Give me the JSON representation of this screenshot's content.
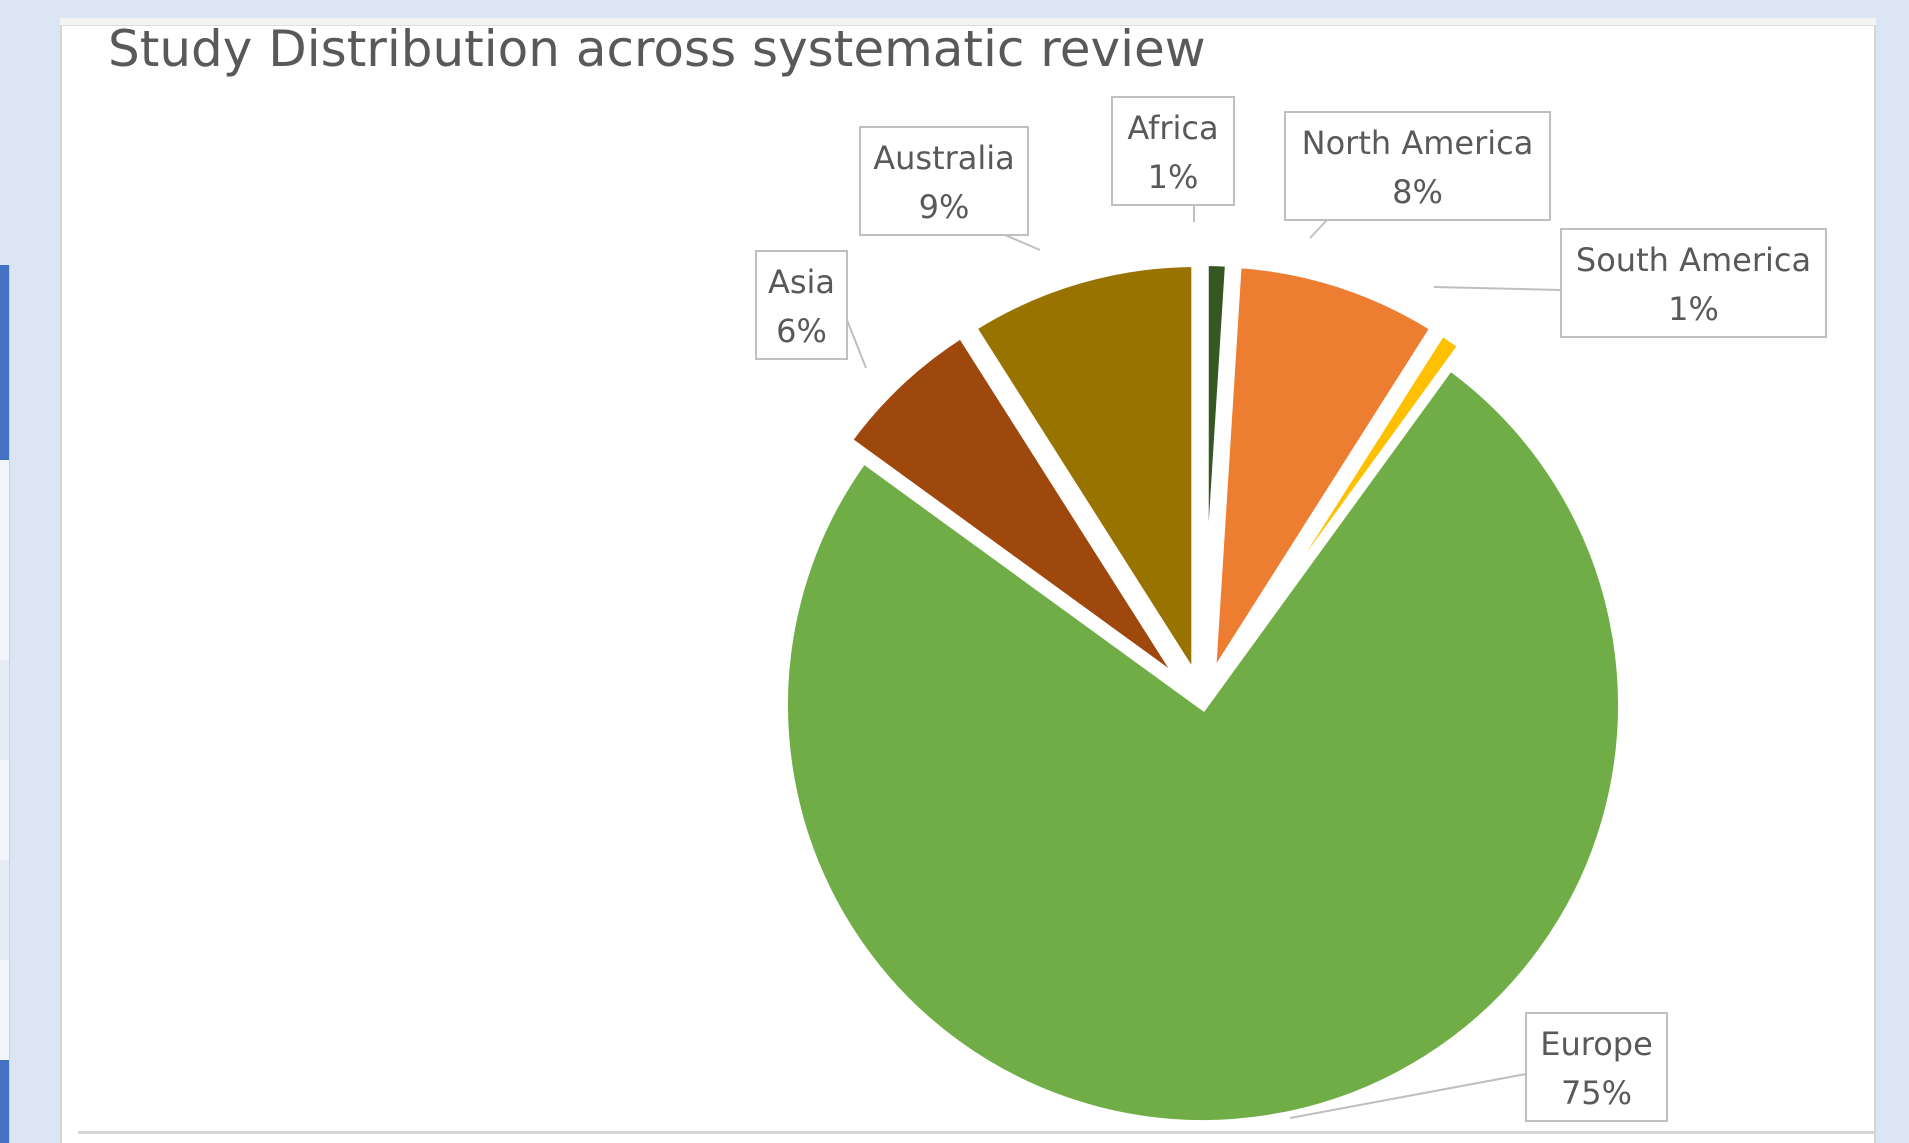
{
  "chart_data": {
    "type": "pie",
    "title": "Study Distribution across systematic review",
    "categories": [
      "Africa",
      "North America",
      "South America",
      "Europe",
      "Asia",
      "Australia"
    ],
    "values": [
      1,
      8,
      1,
      75,
      6,
      9
    ],
    "data_labels": [
      "1%",
      "8%",
      "1%",
      "75%",
      "6%",
      "9%"
    ],
    "colors": [
      "#375623",
      "#ed7d31",
      "#ffc000",
      "#70ad47",
      "#9e480e",
      "#997300"
    ],
    "exploded": true,
    "legend": "none"
  }
}
